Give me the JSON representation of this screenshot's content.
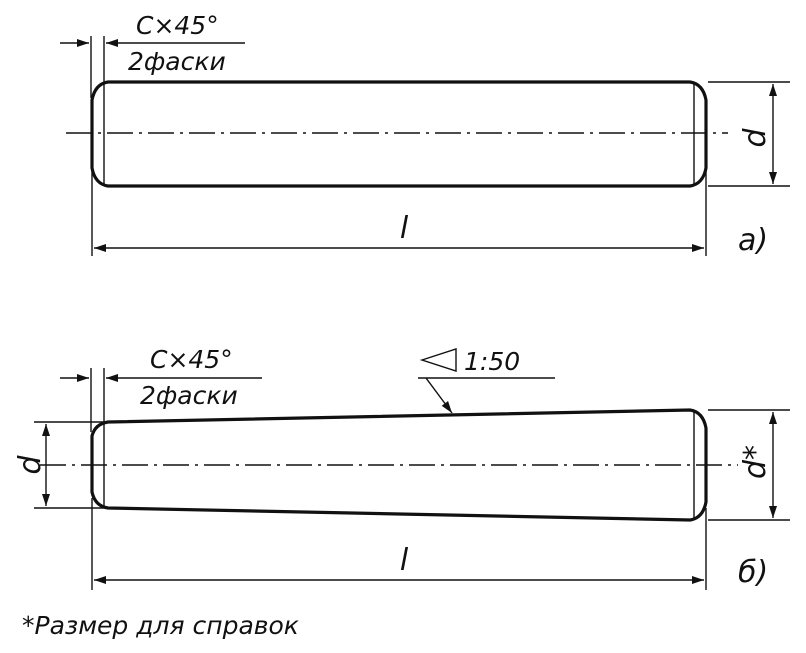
{
  "pin_a": {
    "chamfer_label": "C×45°",
    "chamfer_count": "2фаски",
    "diameter_label": "d",
    "length_label": "l",
    "view_label": "а)"
  },
  "pin_b": {
    "chamfer_label": "C×45°",
    "chamfer_count": "2фаски",
    "taper_label": "1:50",
    "diameter_small_label": "d",
    "diameter_large_label": "d*",
    "length_label": "l",
    "view_label": "б)"
  },
  "footnote": "*Размер для справок"
}
